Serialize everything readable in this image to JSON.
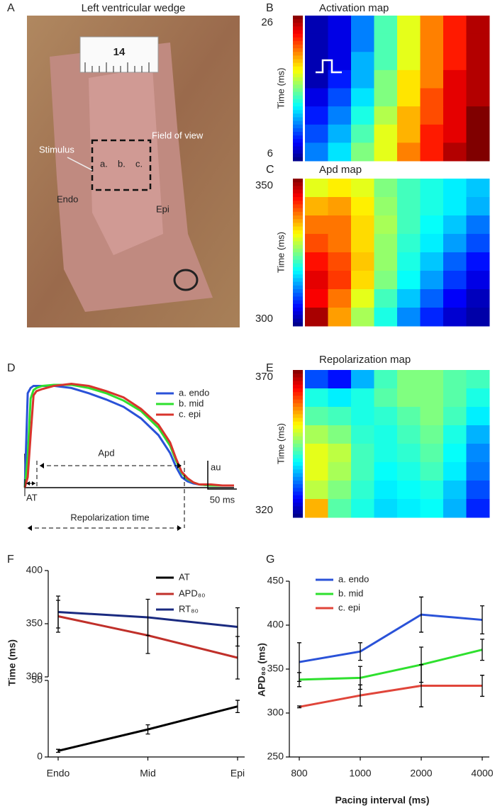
{
  "panel_letters": [
    "A",
    "B",
    "C",
    "D",
    "E",
    "F",
    "G"
  ],
  "photo": {
    "title": "Left ventricular wedge",
    "ruler_label": "14",
    "labels": [
      "Stimulus",
      "a.",
      "b.",
      "c.",
      "Field of view",
      "Endo",
      "Epi"
    ]
  },
  "chart_data": [
    {
      "type": "heatmap",
      "title": "Activation map",
      "colorbar_label": "Time (ms)",
      "colormap": "jet",
      "zlim": [
        6,
        26
      ],
      "zticks": [
        6,
        26
      ],
      "values": [
        [
          7,
          8,
          11,
          15,
          18,
          21,
          23,
          25
        ],
        [
          7,
          8,
          11,
          15,
          18,
          21,
          23,
          25
        ],
        [
          7,
          8,
          12,
          15,
          18,
          21,
          23,
          25
        ],
        [
          7,
          9,
          12,
          16,
          19,
          21,
          24,
          25
        ],
        [
          8,
          10,
          13,
          16,
          19,
          22,
          24,
          25
        ],
        [
          9,
          11,
          14,
          17,
          20,
          22,
          24,
          26
        ],
        [
          10,
          12,
          15,
          18,
          20,
          23,
          24,
          26
        ],
        [
          11,
          13,
          16,
          18,
          21,
          23,
          25,
          26
        ]
      ]
    },
    {
      "type": "heatmap",
      "title": "Apd map",
      "colorbar_label": "Time (ms)",
      "colormap": "jet",
      "zlim": [
        300,
        350
      ],
      "zticks": [
        300,
        350
      ],
      "values": [
        [
          330,
          332,
          330,
          325,
          322,
          320,
          318,
          316
        ],
        [
          335,
          336,
          332,
          326,
          322,
          320,
          318,
          315
        ],
        [
          338,
          338,
          333,
          327,
          322,
          319,
          316,
          312
        ],
        [
          340,
          338,
          333,
          326,
          321,
          318,
          314,
          310
        ],
        [
          343,
          340,
          334,
          326,
          320,
          316,
          311,
          307
        ],
        [
          345,
          341,
          333,
          325,
          319,
          314,
          309,
          305
        ],
        [
          344,
          338,
          330,
          322,
          316,
          311,
          306,
          303
        ],
        [
          348,
          336,
          327,
          320,
          313,
          308,
          304,
          302
        ]
      ]
    },
    {
      "type": "trace",
      "xlim": [
        0,
        360
      ],
      "ylim": [
        0,
        1
      ],
      "x": [
        0,
        5,
        10,
        15,
        20,
        30,
        50,
        80,
        110,
        140,
        170,
        200,
        230,
        250,
        260,
        270,
        280,
        290,
        300,
        320,
        340,
        360
      ],
      "series": [
        {
          "name": "a. endo",
          "color": "#2a52d8",
          "values": [
            0,
            0.9,
            0.95,
            0.97,
            0.97,
            0.97,
            0.97,
            0.95,
            0.9,
            0.84,
            0.77,
            0.66,
            0.5,
            0.33,
            0.2,
            0.1,
            0.06,
            0.04,
            0.03,
            0.02,
            0.02,
            0.02
          ]
        },
        {
          "name": "b. mid",
          "color": "#2ee02e",
          "values": [
            0,
            0.3,
            0.85,
            0.93,
            0.95,
            0.97,
            0.98,
            0.98,
            0.95,
            0.9,
            0.83,
            0.73,
            0.57,
            0.4,
            0.26,
            0.14,
            0.08,
            0.05,
            0.03,
            0.02,
            0.02,
            0.02
          ]
        },
        {
          "name": "c. epi",
          "color": "#d8342c",
          "values": [
            0,
            0.1,
            0.5,
            0.88,
            0.92,
            0.94,
            0.97,
            0.99,
            0.97,
            0.92,
            0.86,
            0.75,
            0.6,
            0.43,
            0.28,
            0.15,
            0.09,
            0.05,
            0.03,
            0.03,
            0.02,
            0.02
          ]
        }
      ],
      "annotations": [
        "Apd",
        "AT",
        "Repolarization time",
        "au"
      ],
      "scale_bar": {
        "value": 50,
        "label": "50 ms"
      }
    },
    {
      "type": "heatmap",
      "title": "Repolarization map",
      "colorbar_label": "Time (ms)",
      "colormap": "jet",
      "zlim": [
        320,
        370
      ],
      "zticks": [
        320,
        370
      ],
      "values": [
        [
          330,
          327,
          335,
          342,
          345,
          345,
          343,
          342
        ],
        [
          340,
          338,
          340,
          343,
          345,
          345,
          343,
          340
        ],
        [
          343,
          342,
          340,
          341,
          343,
          345,
          342,
          338
        ],
        [
          347,
          345,
          341,
          340,
          342,
          344,
          340,
          335
        ],
        [
          350,
          348,
          342,
          340,
          341,
          343,
          339,
          333
        ],
        [
          350,
          347,
          342,
          339,
          340,
          342,
          338,
          332
        ],
        [
          348,
          345,
          341,
          338,
          339,
          340,
          336,
          330
        ],
        [
          355,
          343,
          340,
          337,
          338,
          339,
          335,
          328
        ]
      ]
    },
    {
      "type": "line",
      "ylabel": "Time (ms)",
      "ylim": [
        300,
        400
      ],
      "yticks": [
        300,
        350,
        400
      ],
      "series": [
        {
          "name": "APD₈₀",
          "color": "#c0302a",
          "values": [
            357,
            339,
            318
          ],
          "errors": [
            15,
            17,
            20
          ]
        },
        {
          "name": "RT₈₀",
          "color": "#1a2a80",
          "values": [
            361,
            356,
            347
          ],
          "errors": [
            15,
            17,
            18
          ]
        }
      ]
    },
    {
      "type": "line",
      "categories": [
        "Endo",
        "Mid",
        "Epi"
      ],
      "ylim": [
        0,
        50
      ],
      "yticks": [
        0,
        50
      ],
      "series": [
        {
          "name": "AT",
          "color": "#000000",
          "values": [
            4,
            18,
            33
          ],
          "errors": [
            1,
            3,
            4
          ]
        }
      ]
    },
    {
      "type": "line",
      "xlabel": "Pacing interval (ms)",
      "ylabel": "APD₈₀ (ms)",
      "categories": [
        "800",
        "1000",
        "2000",
        "4000"
      ],
      "ylim": [
        250,
        450
      ],
      "yticks": [
        250,
        300,
        350,
        400,
        450
      ],
      "series": [
        {
          "name": "a. endo",
          "color": "#2a52d8",
          "values": [
            358,
            370,
            412,
            406
          ],
          "errors": [
            22,
            10,
            20,
            16
          ]
        },
        {
          "name": "b. mid",
          "color": "#2ee02e",
          "values": [
            338,
            340,
            355,
            372
          ],
          "errors": [
            8,
            13,
            20,
            12
          ]
        },
        {
          "name": "c. epi",
          "color": "#e0453a",
          "values": [
            307,
            320,
            331,
            331
          ],
          "errors": [
            1,
            12,
            24,
            12
          ]
        }
      ]
    }
  ]
}
